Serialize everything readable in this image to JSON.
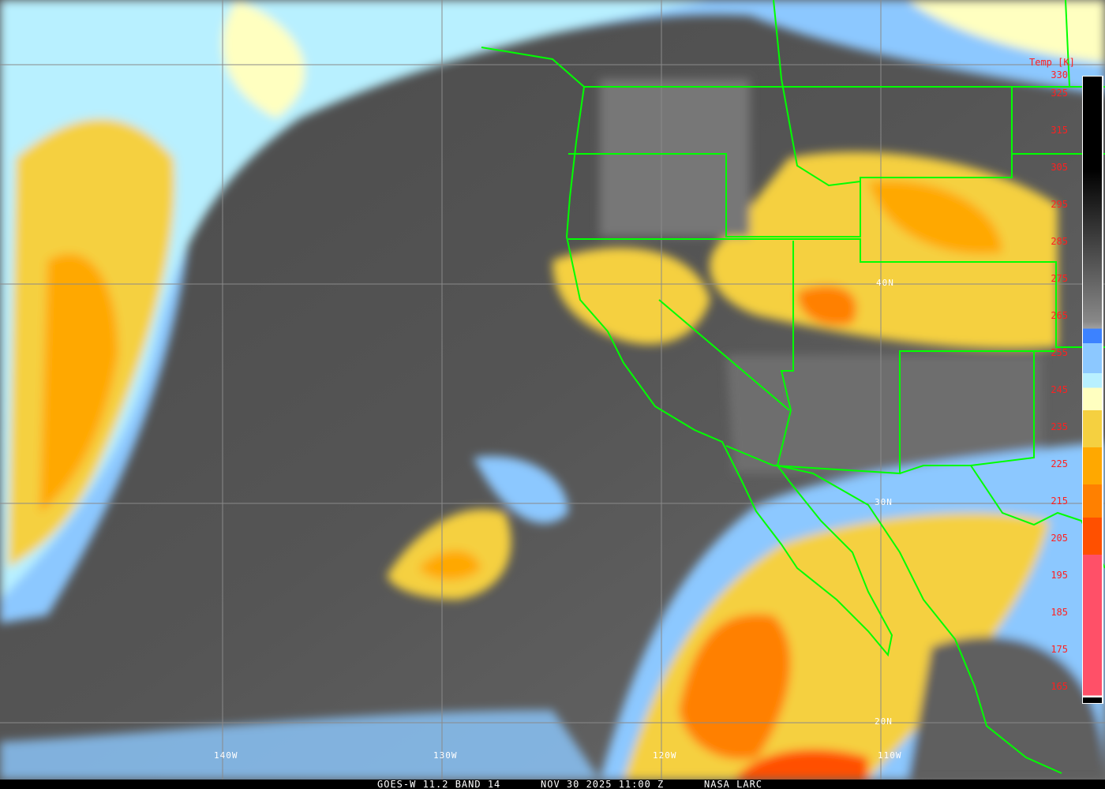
{
  "footer": {
    "satellite": "GOES-W 11.2 BAND 14",
    "datetime": "NOV 30 2025 11:00 Z",
    "credit": "NASA LARC"
  },
  "grid_labels": {
    "lon": [
      "140W",
      "130W",
      "120W",
      "110W"
    ],
    "lat": [
      "40N",
      "30N",
      "20N"
    ]
  },
  "colorbar": {
    "title": "Temp [K]",
    "ticks": [
      "330",
      "325",
      "315",
      "305",
      "295",
      "285",
      "275",
      "265",
      "255",
      "245",
      "235",
      "225",
      "215",
      "205",
      "195",
      "185",
      "175",
      "165"
    ],
    "colors": {
      "cold_pink": "#ff5068",
      "red_orange": "#ff5000",
      "orange": "#ff8000",
      "amber": "#ffa800",
      "yellow": "#f5d040",
      "pale_yellow": "#ffffc0",
      "light_cyan": "#b8f0ff",
      "light_blue": "#8cc8ff",
      "blue": "#3c82ff",
      "coastline": "#00ff00"
    }
  }
}
